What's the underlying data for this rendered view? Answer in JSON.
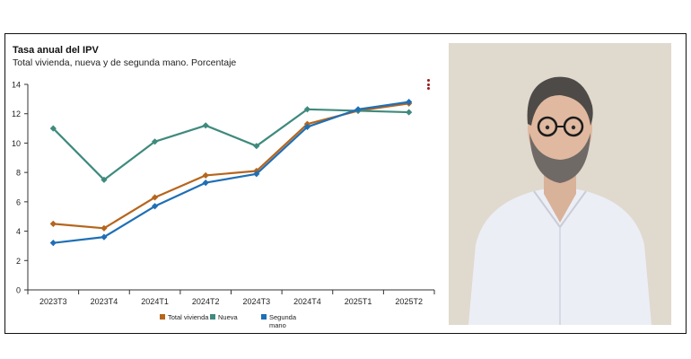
{
  "chart_data": {
    "type": "line",
    "title": "Tasa anual del IPV",
    "subtitle": "Total vivienda, nueva y de segunda mano. Porcentaje",
    "categories": [
      "2023T3",
      "2023T4",
      "2024T1",
      "2024T2",
      "2024T3",
      "2024T4",
      "2025T1",
      "2025T2"
    ],
    "ylim": [
      0,
      14
    ],
    "yticks": [
      "0",
      "2",
      "4",
      "6",
      "8",
      "10",
      "12",
      "14"
    ],
    "grid": false,
    "legend_position": "bottom",
    "series": [
      {
        "name": "Total vivienda",
        "color": "#b5651d",
        "values": [
          4.5,
          4.2,
          6.3,
          7.8,
          8.1,
          11.3,
          12.2,
          12.7
        ]
      },
      {
        "name": "Nueva",
        "color": "#3f8a7e",
        "values": [
          11.0,
          7.5,
          10.1,
          11.2,
          9.8,
          12.3,
          12.2,
          12.1
        ]
      },
      {
        "name": "Segunda\nmano",
        "color": "#1f6fb5",
        "values": [
          3.2,
          3.6,
          5.7,
          7.3,
          7.9,
          11.1,
          12.3,
          12.8
        ]
      }
    ]
  },
  "photo": {
    "icon": "person-portrait",
    "background": "#e2dcd1",
    "shirt": "#eef0f7"
  }
}
